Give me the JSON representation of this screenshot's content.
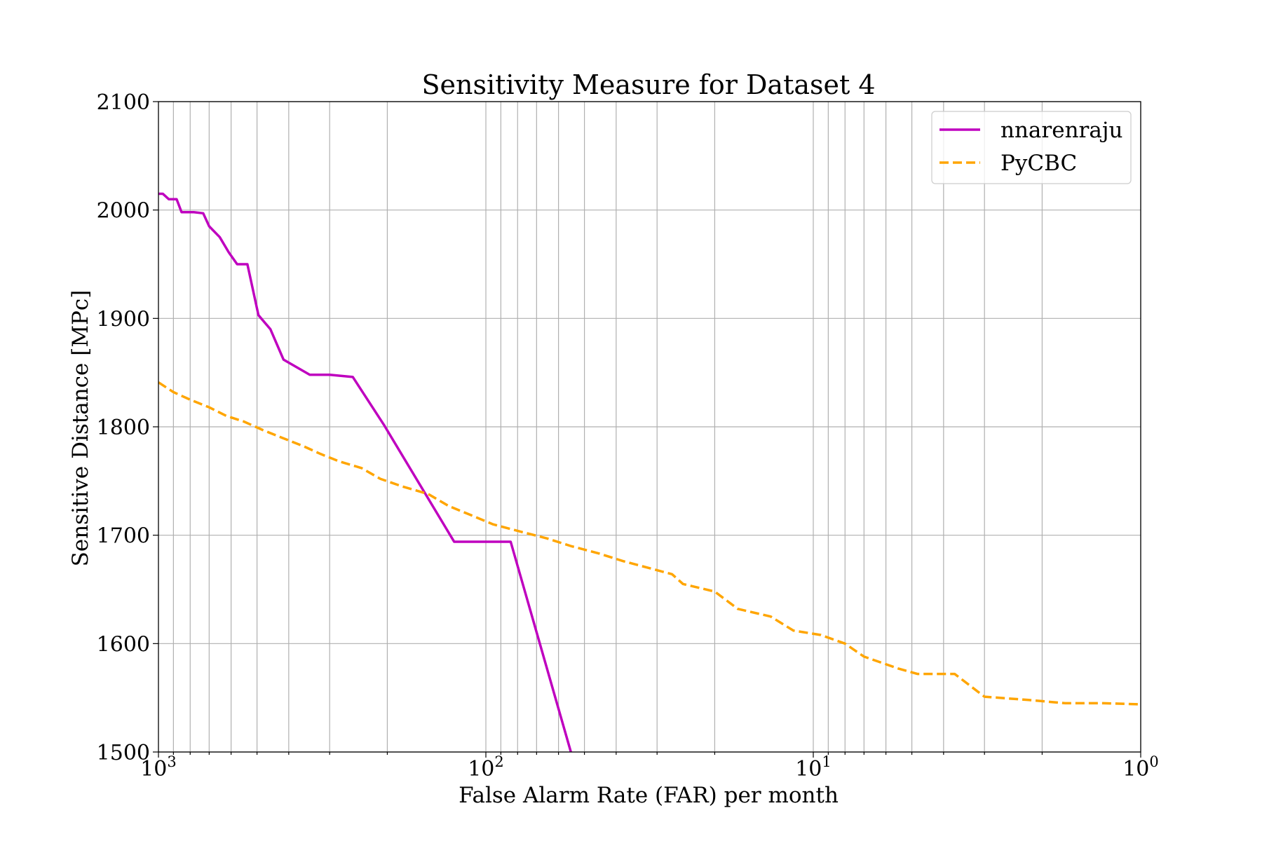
{
  "chart_data": {
    "type": "line",
    "title": "Sensitivity Measure for Dataset 4",
    "xlabel": "False Alarm Rate (FAR) per month",
    "ylabel": "Sensitive Distance [MPc]",
    "xscale": "log",
    "x_reversed": true,
    "xlim": [
      1000,
      1
    ],
    "ylim": [
      1500,
      2100
    ],
    "grid": true,
    "grid_minor_x": true,
    "legend": "top-right",
    "x_ticks": [
      {
        "base": "10",
        "exp": "3",
        "value": 1000
      },
      {
        "base": "10",
        "exp": "2",
        "value": 100
      },
      {
        "base": "10",
        "exp": "1",
        "value": 10
      },
      {
        "base": "10",
        "exp": "0",
        "value": 1
      }
    ],
    "y_ticks": [
      "1500",
      "1600",
      "1700",
      "1800",
      "1900",
      "2000",
      "2100"
    ],
    "series": [
      {
        "name": "nnarenraju",
        "color": "#bf00bf",
        "style": "solid",
        "points": [
          [
            1000,
            2015
          ],
          [
            970,
            2015
          ],
          [
            930,
            2010
          ],
          [
            880,
            2010
          ],
          [
            850,
            1998
          ],
          [
            780,
            1998
          ],
          [
            730,
            1997
          ],
          [
            700,
            1985
          ],
          [
            650,
            1975
          ],
          [
            610,
            1961
          ],
          [
            575,
            1950
          ],
          [
            535,
            1950
          ],
          [
            495,
            1903
          ],
          [
            455,
            1890
          ],
          [
            415,
            1862
          ],
          [
            345,
            1848
          ],
          [
            300,
            1848
          ],
          [
            255,
            1846
          ],
          [
            205,
            1802
          ],
          [
            125,
            1694
          ],
          [
            84,
            1694
          ],
          [
            55,
            1500
          ]
        ]
      },
      {
        "name": "PyCBC",
        "color": "#ffa500",
        "style": "dashed",
        "points": [
          [
            1000,
            1841
          ],
          [
            900,
            1832
          ],
          [
            800,
            1825
          ],
          [
            700,
            1818
          ],
          [
            620,
            1810
          ],
          [
            550,
            1805
          ],
          [
            480,
            1797
          ],
          [
            420,
            1790
          ],
          [
            360,
            1782
          ],
          [
            320,
            1775
          ],
          [
            280,
            1768
          ],
          [
            240,
            1762
          ],
          [
            210,
            1752
          ],
          [
            180,
            1745
          ],
          [
            150,
            1738
          ],
          [
            130,
            1727
          ],
          [
            110,
            1718
          ],
          [
            95,
            1710
          ],
          [
            80,
            1704
          ],
          [
            65,
            1697
          ],
          [
            55,
            1690
          ],
          [
            45,
            1683
          ],
          [
            38,
            1676
          ],
          [
            32,
            1670
          ],
          [
            27,
            1664
          ],
          [
            25,
            1655
          ],
          [
            20,
            1648
          ],
          [
            17,
            1632
          ],
          [
            13.5,
            1625
          ],
          [
            11.5,
            1612
          ],
          [
            9.5,
            1608
          ],
          [
            8,
            1600
          ],
          [
            7,
            1588
          ],
          [
            5.5,
            1577
          ],
          [
            4.8,
            1572
          ],
          [
            3.7,
            1572
          ],
          [
            3.0,
            1551
          ],
          [
            2.2,
            1548
          ],
          [
            1.7,
            1545
          ],
          [
            1.3,
            1545
          ],
          [
            1.0,
            1544
          ]
        ]
      }
    ]
  }
}
